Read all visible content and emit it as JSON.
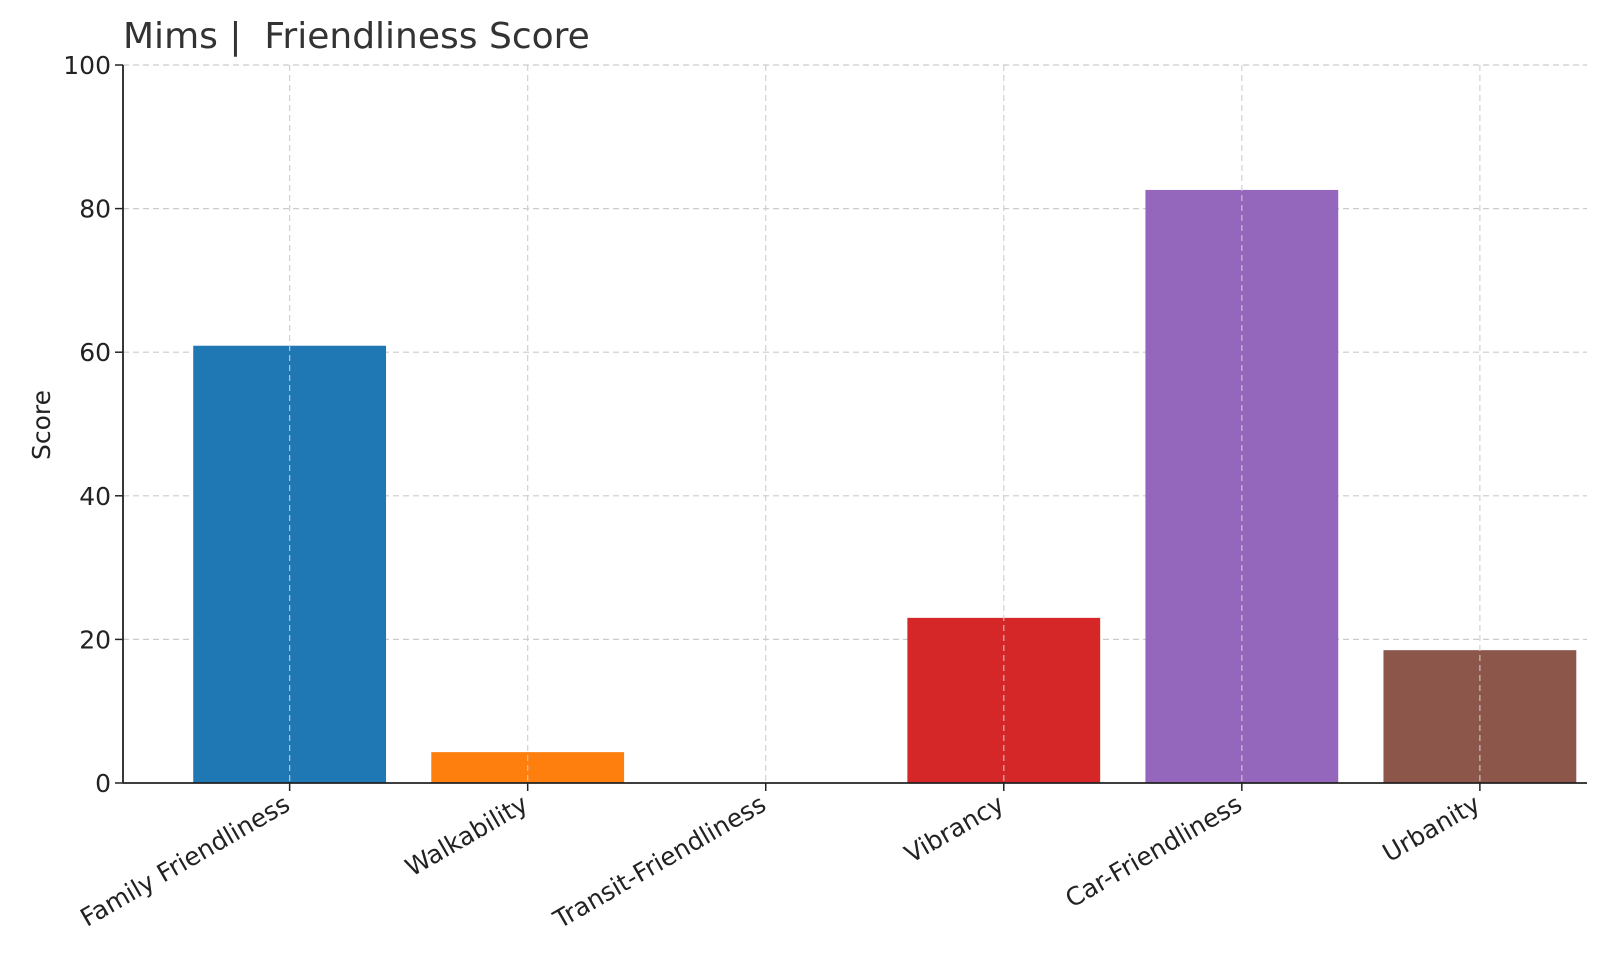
{
  "chart_data": {
    "type": "bar",
    "title": "Mims |  Friendliness Score",
    "xlabel": "",
    "ylabel": "Score",
    "categories": [
      "Family Friendliness",
      "Walkability",
      "Transit-Friendliness",
      "Vibrancy",
      "Car-Friendliness",
      "Urbanity"
    ],
    "values": [
      60.9,
      4.3,
      0,
      23.0,
      82.6,
      18.5
    ],
    "colors": [
      "#1f77b4",
      "#ff7f0e",
      "#2ca02c",
      "#d62728",
      "#9467bd",
      "#8c564b"
    ],
    "ylim": [
      0,
      100
    ],
    "yticks": [
      "0",
      "20",
      "40",
      "60",
      "80",
      "100"
    ],
    "grid": true,
    "legend": "none"
  }
}
